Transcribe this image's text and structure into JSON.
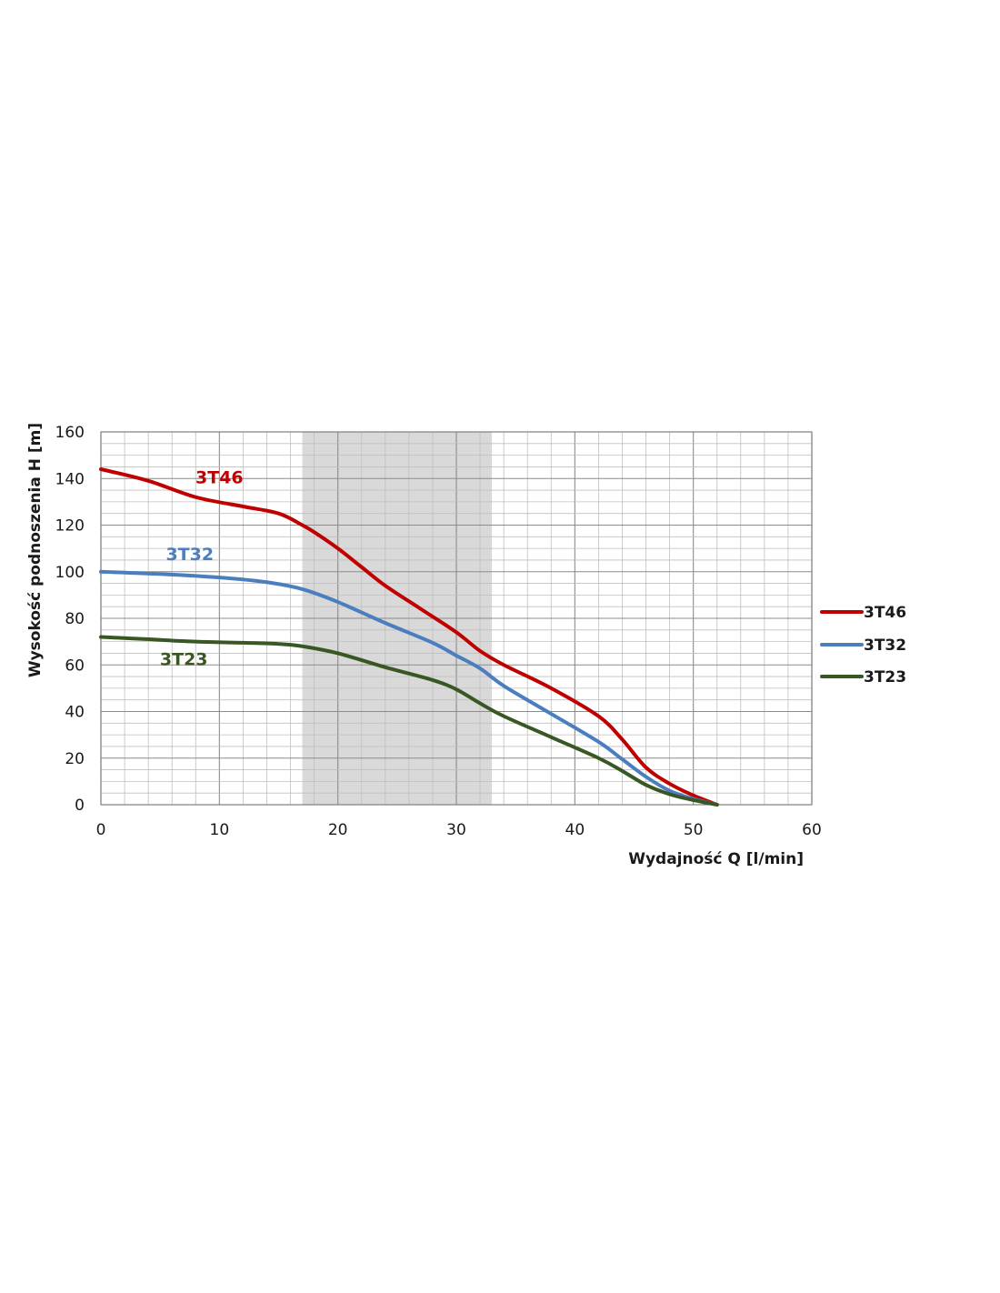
{
  "chart_data": {
    "type": "line",
    "title": "",
    "xlabel": "Wydajność Q [l/min]",
    "ylabel": "Wysokość podnoszenia H [m]",
    "xlim": [
      0,
      60
    ],
    "ylim": [
      0,
      160
    ],
    "x_ticks": [
      0,
      10,
      20,
      30,
      40,
      50,
      60
    ],
    "y_ticks": [
      0,
      20,
      40,
      60,
      80,
      100,
      120,
      140,
      160
    ],
    "grid": true,
    "highlight_band": {
      "x_from": 17,
      "x_to": 33,
      "color": "#d9d9d9"
    },
    "legend_position": "right",
    "series": [
      {
        "name": "3T46",
        "color": "#c00000",
        "label_at": [
          10,
          138
        ],
        "points": [
          [
            0,
            144
          ],
          [
            4,
            139
          ],
          [
            8,
            132
          ],
          [
            12,
            128
          ],
          [
            15,
            125
          ],
          [
            17,
            120
          ],
          [
            18,
            117
          ],
          [
            20,
            110
          ],
          [
            22,
            102
          ],
          [
            24,
            94
          ],
          [
            27,
            84
          ],
          [
            30,
            74
          ],
          [
            32,
            66
          ],
          [
            34,
            60
          ],
          [
            38,
            50
          ],
          [
            42,
            38
          ],
          [
            44,
            28
          ],
          [
            46,
            16
          ],
          [
            48,
            9
          ],
          [
            50,
            4
          ],
          [
            52,
            0
          ]
        ]
      },
      {
        "name": "3T32",
        "color": "#4a7ebf",
        "label_at": [
          7.5,
          105
        ],
        "points": [
          [
            0,
            100
          ],
          [
            5,
            99
          ],
          [
            10,
            97.5
          ],
          [
            14,
            95.5
          ],
          [
            17,
            92.5
          ],
          [
            20,
            87
          ],
          [
            24,
            78
          ],
          [
            28,
            69.5
          ],
          [
            30,
            64
          ],
          [
            32,
            58.5
          ],
          [
            34,
            51
          ],
          [
            38,
            39
          ],
          [
            42,
            27
          ],
          [
            44,
            19.5
          ],
          [
            46,
            12
          ],
          [
            48,
            6
          ],
          [
            50,
            2.5
          ],
          [
            52,
            0
          ]
        ]
      },
      {
        "name": "3T23",
        "color": "#385723",
        "label_at": [
          7,
          60
        ],
        "points": [
          [
            0,
            72
          ],
          [
            4,
            71
          ],
          [
            8,
            70
          ],
          [
            12,
            69.5
          ],
          [
            15,
            69
          ],
          [
            17,
            68
          ],
          [
            20,
            65
          ],
          [
            24,
            59
          ],
          [
            28,
            53.5
          ],
          [
            30,
            49.5
          ],
          [
            32,
            43.5
          ],
          [
            34,
            38
          ],
          [
            38,
            29
          ],
          [
            42,
            20
          ],
          [
            44,
            14.5
          ],
          [
            46,
            8.5
          ],
          [
            48,
            4.5
          ],
          [
            50,
            2
          ],
          [
            52,
            0
          ]
        ]
      }
    ]
  }
}
